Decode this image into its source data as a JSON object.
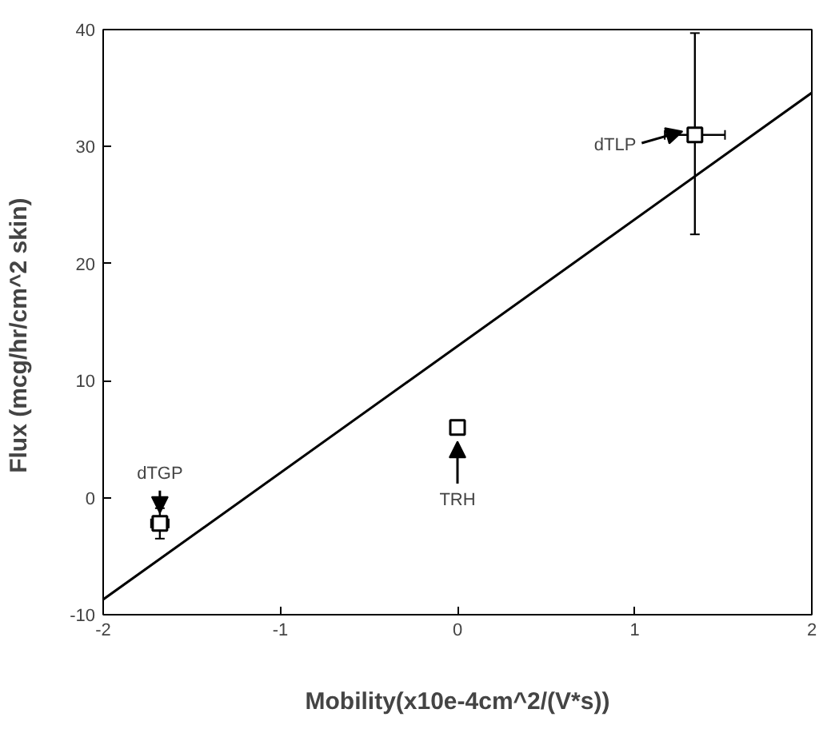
{
  "chart_data": {
    "type": "scatter",
    "xlabel": "Mobility(x10e-4cm^2/(V*s))",
    "ylabel": "Flux   (mcg/hr/cm^2   skin)",
    "xlim": [
      -2,
      2
    ],
    "ylim": [
      -10,
      40
    ],
    "xticks": [
      -2,
      -1,
      0,
      1,
      2
    ],
    "yticks": [
      -10,
      0,
      10,
      20,
      30,
      40
    ],
    "marker": "square",
    "grid": false,
    "series": [
      {
        "color": "#000000",
        "x": [
          -1.68,
          0,
          1.34
        ],
        "values": [
          -2.2,
          6,
          31
        ],
        "errors": [
          1.3,
          null,
          [
            22.5,
            39.7
          ]
        ],
        "xerrors": [
          0.05,
          null,
          0.17
        ]
      },
      {
        "type": "line",
        "marker": "none",
        "color": "#000000",
        "x": [
          -2,
          2
        ],
        "values": [
          -8.7,
          34.6
        ]
      }
    ],
    "annotations": [
      {
        "text": "dTGP",
        "x": -1.68,
        "y": -2.2
      },
      {
        "text": "TRH",
        "x": 0,
        "y": 6
      },
      {
        "text": "dTLP",
        "x": 1.34,
        "y": 31
      }
    ]
  }
}
